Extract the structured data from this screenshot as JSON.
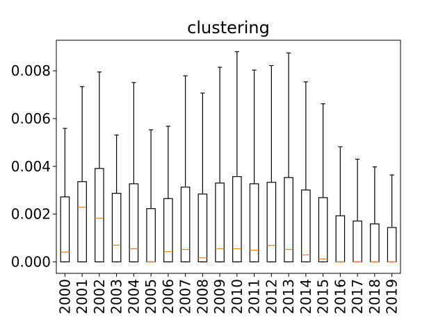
{
  "chart_data": {
    "type": "boxplot",
    "title": "clustering",
    "xlabel": "",
    "ylabel": "",
    "ylim": [
      -0.00048,
      0.00928
    ],
    "yticks": [
      0.0,
      0.002,
      0.004,
      0.006,
      0.008
    ],
    "ytick_labels": [
      "0.000",
      "0.002",
      "0.004",
      "0.006",
      "0.008"
    ],
    "grid": false,
    "categories": [
      "2000",
      "2001",
      "2002",
      "2003",
      "2004",
      "2005",
      "2006",
      "2007",
      "2008",
      "2009",
      "2010",
      "2011",
      "2012",
      "2013",
      "2014",
      "2015",
      "2016",
      "2017",
      "2018",
      "2019"
    ],
    "boxes": [
      {
        "label": "2000",
        "min": 0.0,
        "q1": 0.0,
        "median": 0.00041,
        "q3": 0.00272,
        "max": 0.00559
      },
      {
        "label": "2001",
        "min": 0.0,
        "q1": 0.0,
        "median": 0.00229,
        "q3": 0.00336,
        "max": 0.00734
      },
      {
        "label": "2002",
        "min": 0.0,
        "q1": 0.0,
        "median": 0.00183,
        "q3": 0.00391,
        "max": 0.00795
      },
      {
        "label": "2003",
        "min": 0.0,
        "q1": 0.0,
        "median": 0.0007,
        "q3": 0.00287,
        "max": 0.00531
      },
      {
        "label": "2004",
        "min": 0.0,
        "q1": 0.0,
        "median": 0.00055,
        "q3": 0.00327,
        "max": 0.00751
      },
      {
        "label": "2005",
        "min": 0.0,
        "q1": 0.0,
        "median": 0.0,
        "q3": 0.00223,
        "max": 0.00553
      },
      {
        "label": "2006",
        "min": 0.0,
        "q1": 0.0,
        "median": 0.00043,
        "q3": 0.00265,
        "max": 0.00568
      },
      {
        "label": "2007",
        "min": 0.0,
        "q1": 0.0,
        "median": 0.00052,
        "q3": 0.00313,
        "max": 0.00779
      },
      {
        "label": "2008",
        "min": 0.0,
        "q1": 0.0,
        "median": 0.00017,
        "q3": 0.00284,
        "max": 0.00707
      },
      {
        "label": "2009",
        "min": 0.0,
        "q1": 0.0,
        "median": 0.00055,
        "q3": 0.0033,
        "max": 0.00815
      },
      {
        "label": "2010",
        "min": 0.0,
        "q1": 0.0,
        "median": 0.00055,
        "q3": 0.00357,
        "max": 0.0088
      },
      {
        "label": "2011",
        "min": 0.0,
        "q1": 0.0,
        "median": 0.00049,
        "q3": 0.00327,
        "max": 0.00803
      },
      {
        "label": "2012",
        "min": 0.0,
        "q1": 0.0,
        "median": 0.00069,
        "q3": 0.00333,
        "max": 0.00822
      },
      {
        "label": "2013",
        "min": 0.0,
        "q1": 0.0,
        "median": 0.00052,
        "q3": 0.00353,
        "max": 0.00875
      },
      {
        "label": "2014",
        "min": 0.0,
        "q1": 0.0,
        "median": 0.00029,
        "q3": 0.00301,
        "max": 0.00754
      },
      {
        "label": "2015",
        "min": 0.0,
        "q1": 0.0,
        "median": 0.00012,
        "q3": 0.00269,
        "max": 0.00662
      },
      {
        "label": "2016",
        "min": 0.0,
        "q1": 0.0,
        "median": 0.0,
        "q3": 0.00193,
        "max": 0.00482
      },
      {
        "label": "2017",
        "min": 0.0,
        "q1": 0.0,
        "median": 0.0,
        "q3": 0.00171,
        "max": 0.0043
      },
      {
        "label": "2018",
        "min": 0.0,
        "q1": 0.0,
        "median": 0.0,
        "q3": 0.00159,
        "max": 0.00398
      },
      {
        "label": "2019",
        "min": 0.0,
        "q1": 0.0,
        "median": 0.0,
        "q3": 0.00144,
        "max": 0.00364
      }
    ],
    "colors": {
      "box": "#000000",
      "median": "#ff7f0e",
      "whisker": "#000000",
      "axes": "#000000",
      "background": "#ffffff"
    }
  }
}
